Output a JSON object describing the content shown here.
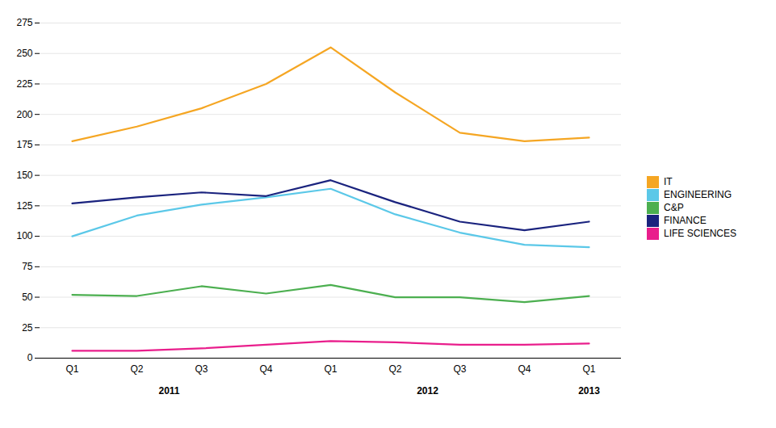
{
  "chart_data": {
    "type": "line",
    "categories": [
      "Q1",
      "Q2",
      "Q3",
      "Q4",
      "Q1",
      "Q2",
      "Q3",
      "Q4",
      "Q1"
    ],
    "category_groups": [
      {
        "label": "2011",
        "start": 0,
        "end": 3
      },
      {
        "label": "2012",
        "start": 4,
        "end": 7
      },
      {
        "label": "2013",
        "start": 8,
        "end": 8
      }
    ],
    "series": [
      {
        "name": "IT",
        "color": "#F5A623",
        "values": [
          178,
          190,
          205,
          225,
          255,
          218,
          185,
          178,
          181
        ]
      },
      {
        "name": "ENGINEERING",
        "color": "#5BC8E8",
        "values": [
          100,
          117,
          126,
          132,
          139,
          118,
          103,
          93,
          91
        ]
      },
      {
        "name": "C&P",
        "color": "#4CAF50",
        "values": [
          52,
          51,
          59,
          53,
          60,
          50,
          50,
          46,
          51
        ]
      },
      {
        "name": "FINANCE",
        "color": "#1A237E",
        "values": [
          127,
          132,
          136,
          133,
          146,
          128,
          112,
          105,
          112
        ]
      },
      {
        "name": "LIFE SCIENCES",
        "color": "#E91E8C",
        "values": [
          6,
          6,
          8,
          11,
          14,
          13,
          11,
          11,
          12
        ]
      }
    ],
    "ylim": [
      0,
      275
    ],
    "yticks": [
      0,
      25,
      50,
      75,
      100,
      125,
      150,
      175,
      200,
      225,
      250,
      275
    ],
    "grid": true,
    "legend": "right"
  }
}
